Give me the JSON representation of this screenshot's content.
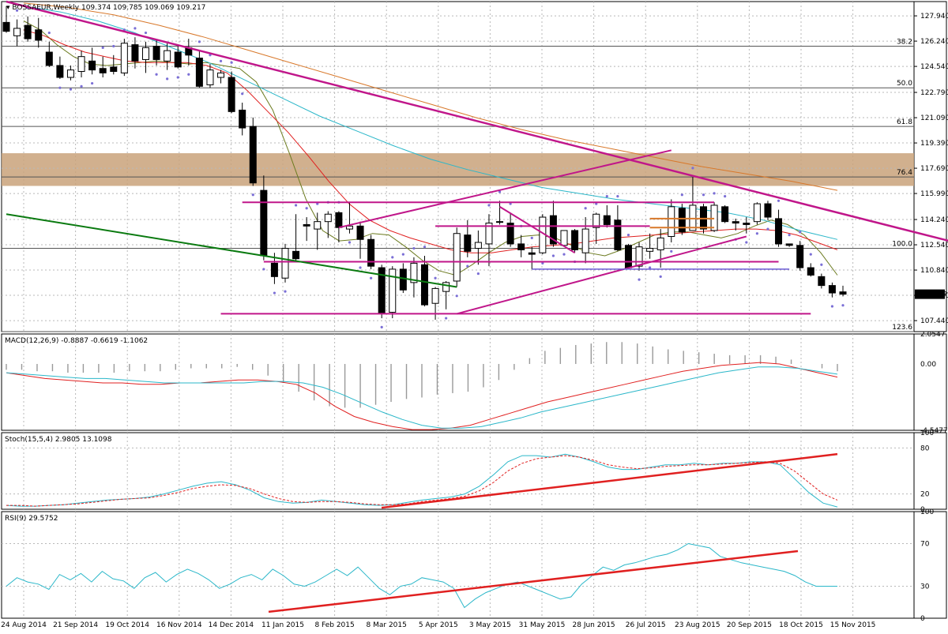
{
  "chart_data": [
    {
      "type": "candlestick",
      "panel": "main",
      "title": "BOSSAEUR,Weekly",
      "header_values": "109.374 109.785 109.069 109.217",
      "last_price_label": "109.217",
      "ylim": [
        106.7,
        128.9
      ],
      "y_ticks": [
        "127.940",
        "126.240",
        "124.540",
        "122.790",
        "121.090",
        "119.390",
        "117.690",
        "115.990",
        "114.240",
        "112.540",
        "110.840",
        "109.140",
        "107.440"
      ],
      "fib_levels": [
        {
          "label": "38.2",
          "value": 125.9
        },
        {
          "label": "50.0",
          "value": 123.1
        },
        {
          "label": "61.8",
          "value": 120.5
        },
        {
          "label": "76.4",
          "value": 117.1
        },
        {
          "label": "100.0",
          "value": 112.3
        },
        {
          "label": "123.6",
          "value": 106.7
        }
      ],
      "zone": {
        "from": 116.5,
        "to": 118.7,
        "color": "#c9a27a"
      },
      "candles": [
        [
          127.5,
          128.6,
          126.8,
          126.9
        ],
        [
          126.6,
          127.7,
          125.9,
          127.1
        ],
        [
          127.3,
          127.9,
          126.2,
          126.4
        ],
        [
          127.0,
          127.8,
          125.8,
          126.3
        ],
        [
          125.5,
          126.2,
          124.5,
          124.6
        ],
        [
          124.6,
          125.2,
          123.7,
          123.8
        ],
        [
          123.8,
          124.6,
          123.6,
          124.3
        ],
        [
          124.2,
          125.6,
          123.8,
          125.2
        ],
        [
          124.9,
          125.8,
          124.0,
          124.3
        ],
        [
          124.4,
          125.2,
          123.8,
          124.1
        ],
        [
          124.5,
          125.3,
          124.0,
          124.2
        ],
        [
          124.1,
          126.4,
          123.9,
          126.1
        ],
        [
          126.0,
          126.5,
          124.4,
          124.9
        ],
        [
          125.0,
          126.2,
          124.1,
          125.8
        ],
        [
          125.9,
          126.3,
          124.6,
          125.0
        ],
        [
          124.9,
          126.1,
          124.3,
          125.6
        ],
        [
          125.5,
          125.9,
          124.4,
          124.5
        ],
        [
          125.8,
          126.4,
          124.6,
          125.3
        ],
        [
          125.1,
          125.6,
          123.1,
          123.2
        ],
        [
          123.3,
          124.7,
          123.1,
          124.3
        ],
        [
          123.8,
          124.3,
          123.4,
          124.1
        ],
        [
          123.8,
          124.2,
          121.4,
          121.5
        ],
        [
          121.6,
          122.1,
          119.9,
          120.4
        ],
        [
          120.5,
          121.1,
          116.5,
          116.7
        ],
        [
          116.2,
          117.2,
          111.5,
          111.8
        ],
        [
          111.3,
          112.0,
          109.9,
          110.4
        ],
        [
          110.3,
          112.6,
          110.0,
          112.3
        ],
        [
          112.1,
          114.6,
          111.4,
          111.6
        ],
        [
          113.9,
          114.4,
          112.8,
          113.8
        ],
        [
          113.6,
          114.7,
          112.2,
          114.1
        ],
        [
          114.1,
          114.8,
          113.0,
          114.6
        ],
        [
          114.7,
          114.8,
          112.7,
          113.7
        ],
        [
          113.6,
          115.4,
          113.3,
          113.8
        ],
        [
          113.8,
          114.1,
          111.6,
          112.9
        ],
        [
          112.9,
          113.2,
          110.9,
          111.1
        ],
        [
          111.0,
          111.2,
          107.6,
          107.9
        ],
        [
          108.0,
          111.1,
          107.6,
          110.9
        ],
        [
          110.9,
          111.3,
          109.3,
          109.5
        ],
        [
          110.0,
          111.7,
          109.0,
          111.3
        ],
        [
          111.2,
          111.8,
          108.4,
          108.5
        ],
        [
          108.6,
          109.7,
          107.5,
          109.6
        ],
        [
          109.4,
          110.1,
          108.2,
          110.0
        ],
        [
          110.1,
          113.7,
          109.7,
          113.3
        ],
        [
          113.2,
          114.2,
          111.7,
          112.1
        ],
        [
          112.3,
          113.5,
          111.2,
          112.7
        ],
        [
          112.6,
          114.6,
          111.1,
          114.0
        ],
        [
          114.1,
          115.5,
          113.9,
          114.1
        ],
        [
          114.0,
          114.7,
          112.4,
          112.6
        ],
        [
          112.6,
          113.2,
          111.7,
          112.2
        ],
        [
          112.0,
          112.4,
          110.9,
          111.9
        ],
        [
          112.0,
          114.6,
          111.9,
          114.4
        ],
        [
          114.5,
          115.5,
          112.4,
          112.6
        ],
        [
          112.5,
          113.5,
          112.5,
          113.5
        ],
        [
          113.5,
          113.6,
          112.0,
          112.2
        ],
        [
          112.0,
          114.4,
          111.3,
          113.6
        ],
        [
          113.7,
          114.7,
          112.6,
          114.6
        ],
        [
          114.5,
          115.2,
          113.7,
          113.9
        ],
        [
          114.2,
          115.2,
          112.1,
          112.2
        ],
        [
          112.5,
          112.6,
          110.9,
          111.0
        ],
        [
          111.1,
          112.7,
          110.8,
          112.4
        ],
        [
          112.1,
          113.3,
          111.6,
          112.3
        ],
        [
          112.2,
          113.6,
          111.0,
          113.0
        ],
        [
          113.1,
          115.6,
          112.7,
          115.1
        ],
        [
          115.0,
          115.3,
          113.2,
          113.4
        ],
        [
          113.5,
          117.1,
          113.5,
          115.2
        ],
        [
          115.1,
          115.3,
          113.3,
          113.6
        ],
        [
          113.5,
          115.4,
          113.4,
          115.2
        ],
        [
          115.1,
          115.2,
          114.0,
          114.1
        ],
        [
          114.1,
          114.3,
          113.5,
          114.0
        ],
        [
          114.0,
          114.4,
          113.3,
          113.9
        ],
        [
          114.1,
          115.4,
          113.9,
          115.3
        ],
        [
          115.3,
          115.5,
          114.2,
          114.4
        ],
        [
          114.3,
          114.9,
          112.4,
          112.6
        ],
        [
          112.6,
          112.6,
          112.4,
          112.5
        ],
        [
          112.5,
          112.8,
          110.8,
          111.0
        ],
        [
          111.0,
          111.3,
          110.4,
          110.5
        ],
        [
          110.4,
          110.6,
          109.6,
          109.8
        ],
        [
          109.8,
          110.0,
          109.0,
          109.3
        ],
        [
          109.374,
          109.785,
          109.069,
          109.217
        ]
      ],
      "moving_averages": [
        {
          "name": "fast",
          "color": "#6b7a1e",
          "values": [
            127.6,
            127.0,
            126.0,
            125.2,
            124.7,
            124.6,
            124.7,
            124.8,
            124.9,
            124.8,
            124.7,
            124.8,
            124.6,
            124.4,
            123.5,
            121.6,
            118.7,
            115.6,
            113.5,
            112.8,
            112.9,
            113.3,
            113.2,
            112.4,
            111.5,
            110.8,
            110.5,
            111.2,
            112.0,
            112.7,
            113.1,
            113.2,
            113.0,
            112.5,
            112.0,
            111.8,
            112.2,
            112.7,
            113.2,
            113.4,
            113.4,
            113.2,
            113.0,
            113.3,
            113.8,
            114.2,
            113.9,
            113.2,
            112.0,
            110.5
          ]
        },
        {
          "name": "medium",
          "color": "#e02020",
          "values": [
            127.0,
            126.6,
            126.0,
            125.5,
            125.2,
            124.9,
            124.8,
            124.8,
            124.8,
            124.6,
            124.1,
            122.9,
            121.5,
            120.1,
            118.5,
            116.8,
            115.3,
            114.2,
            113.5,
            113.0,
            112.6,
            112.2,
            112.0,
            112.0,
            112.2,
            112.4,
            112.5,
            112.6,
            112.8,
            113.0,
            113.1,
            113.2,
            113.3,
            113.4,
            113.5,
            113.6,
            113.6,
            113.5,
            113.2,
            112.7,
            112.2
          ]
        },
        {
          "name": "slow",
          "color": "#2bb7c9",
          "values": [
            128.6,
            128.2,
            127.6,
            126.8,
            125.8,
            124.8,
            123.6,
            122.4,
            121.2,
            120.2,
            119.2,
            118.3,
            117.6,
            117.0,
            116.4,
            116.0,
            115.6,
            115.3,
            115.0,
            114.7,
            114.2,
            113.5,
            112.9
          ]
        },
        {
          "name": "slowest",
          "color": "#d8782a",
          "values": [
            128.8,
            128.5,
            128.0,
            127.3,
            126.5,
            125.6,
            124.7,
            123.8,
            122.9,
            122.0,
            121.1,
            120.3,
            119.6,
            119.0,
            118.4,
            117.8,
            117.3,
            116.8,
            116.2
          ]
        }
      ]
    },
    {
      "type": "line",
      "panel": "macd",
      "title": "MACD(12,26,9) -0.8887 -0.6619 -1.1062",
      "ylim": [
        -4.5477,
        2.0547
      ],
      "y_ticks": [
        "2.0547",
        "0.00",
        "-4.5477"
      ],
      "histogram": [
        -0.4,
        -0.4,
        -0.5,
        -0.5,
        -0.6,
        -0.6,
        -0.6,
        -0.6,
        -0.5,
        -0.5,
        -0.5,
        -0.4,
        -0.3,
        -0.3,
        -0.3,
        -0.2,
        -0.4,
        -0.8,
        -1.3,
        -1.9,
        -2.5,
        -2.9,
        -3.0,
        -3.0,
        -2.8,
        -2.6,
        -2.4,
        -2.3,
        -2.1,
        -2.0,
        -1.9,
        -1.6,
        -1.1,
        -0.4,
        0.4,
        0.9,
        1.1,
        1.3,
        1.4,
        1.5,
        1.5,
        1.4,
        1.2,
        1.0,
        0.9,
        0.8,
        0.7,
        0.6,
        0.6,
        0.6,
        0.5,
        0.3,
        0.0,
        -0.3,
        -0.5
      ],
      "series": [
        {
          "color": "#e02020",
          "values": [
            -0.6,
            -0.8,
            -1.0,
            -1.1,
            -1.2,
            -1.3,
            -1.3,
            -1.4,
            -1.4,
            -1.3,
            -1.3,
            -1.2,
            -1.1,
            -1.1,
            -1.2,
            -1.4,
            -2.0,
            -2.9,
            -3.6,
            -4.0,
            -4.3,
            -4.5,
            -4.5,
            -4.4,
            -4.2,
            -3.8,
            -3.4,
            -3.0,
            -2.6,
            -2.3,
            -2.0,
            -1.7,
            -1.4,
            -1.1,
            -0.8,
            -0.5,
            -0.3,
            -0.1,
            0.0,
            0.1,
            0.0,
            -0.3,
            -0.6,
            -0.9
          ]
        },
        {
          "color": "#2bb7c9",
          "values": [
            -0.6,
            -0.7,
            -0.8,
            -0.9,
            -1.0,
            -1.0,
            -1.1,
            -1.2,
            -1.3,
            -1.3,
            -1.3,
            -1.3,
            -1.3,
            -1.2,
            -1.2,
            -1.3,
            -1.6,
            -2.1,
            -2.7,
            -3.3,
            -3.8,
            -4.2,
            -4.4,
            -4.4,
            -4.3,
            -4.0,
            -3.7,
            -3.3,
            -3.0,
            -2.7,
            -2.4,
            -2.1,
            -1.8,
            -1.5,
            -1.2,
            -0.9,
            -0.6,
            -0.4,
            -0.2,
            -0.2,
            -0.3,
            -0.5,
            -0.7
          ]
        }
      ]
    },
    {
      "type": "line",
      "panel": "stochastic",
      "title": "Stoch(15,5,4) 2.9805 13.1098",
      "ylim": [
        0,
        100
      ],
      "y_ticks": [
        "100",
        "80",
        "20",
        "0"
      ],
      "series": [
        {
          "color": "#2bb7c9",
          "values": [
            5,
            4,
            4,
            5,
            6,
            8,
            10,
            12,
            13,
            14,
            16,
            20,
            25,
            30,
            34,
            36,
            32,
            25,
            15,
            10,
            8,
            9,
            12,
            10,
            8,
            6,
            5,
            6,
            9,
            12,
            14,
            16,
            20,
            30,
            45,
            62,
            70,
            70,
            68,
            72,
            68,
            62,
            55,
            52,
            52,
            55,
            58,
            58,
            60,
            58,
            60,
            60,
            62,
            62,
            58,
            40,
            22,
            8,
            3
          ]
        },
        {
          "color": "#e02020",
          "values": [
            5,
            5,
            4,
            5,
            6,
            7,
            9,
            11,
            13,
            14,
            15,
            18,
            22,
            27,
            30,
            32,
            31,
            27,
            20,
            14,
            10,
            9,
            10,
            10,
            9,
            7,
            6,
            6,
            7,
            10,
            12,
            14,
            17,
            24,
            35,
            50,
            60,
            66,
            68,
            70,
            68,
            64,
            58,
            55,
            53,
            54,
            56,
            57,
            58,
            58,
            59,
            60,
            61,
            62,
            60,
            50,
            35,
            20,
            12
          ]
        }
      ]
    },
    {
      "type": "line",
      "panel": "rsi",
      "title": "RSI(9) 29.5752",
      "ylim": [
        0,
        100
      ],
      "y_ticks": [
        "100",
        "70",
        "30",
        "0"
      ],
      "series": [
        {
          "color": "#2bb7c9",
          "values": [
            30,
            38,
            34,
            32,
            27,
            41,
            36,
            42,
            34,
            44,
            37,
            35,
            28,
            38,
            43,
            34,
            41,
            46,
            42,
            36,
            28,
            32,
            38,
            41,
            36,
            46,
            40,
            32,
            30,
            34,
            40,
            46,
            40,
            48,
            38,
            28,
            22,
            30,
            32,
            38,
            36,
            34,
            28,
            10,
            18,
            24,
            28,
            32,
            34,
            30,
            26,
            22,
            18,
            20,
            32,
            40,
            48,
            45,
            50,
            52,
            55,
            58,
            60,
            64,
            70,
            68,
            66,
            58,
            55,
            52,
            50,
            48,
            46,
            44,
            40,
            34,
            30,
            30,
            30
          ]
        }
      ]
    }
  ],
  "x_labels": [
    "24 Aug 2014",
    "21 Sep 2014",
    "19 Oct 2014",
    "16 Nov 2014",
    "14 Dec 2014",
    "11 Jan 2015",
    "8 Feb 2015",
    "8 Mar 2015",
    "5 Apr 2015",
    "3 May 2015",
    "31 May 2015",
    "28 Jun 2015",
    "26 Jul 2015",
    "23 Aug 2015",
    "20 Sep 2015",
    "18 Oct 2015",
    "15 Nov 2015"
  ],
  "colors": {
    "bull": "#ffffff",
    "bear": "#000000",
    "trend": "#c0168a",
    "support": "#0a7a10",
    "grid": "#b8b8b8",
    "arrow": "#e02020"
  }
}
